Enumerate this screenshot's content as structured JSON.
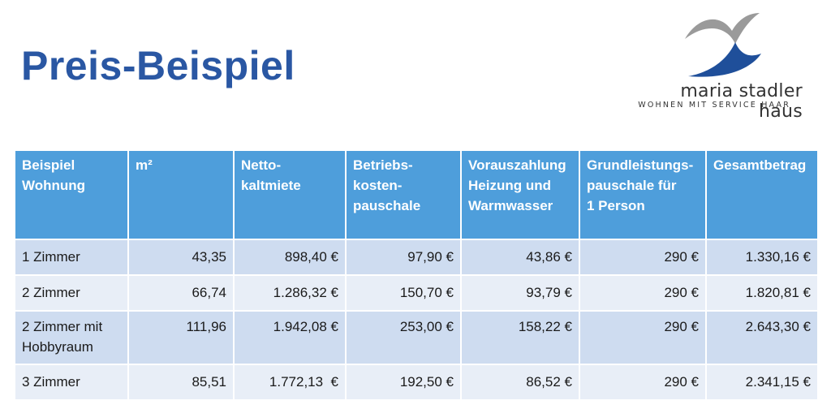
{
  "title": "Preis-Beispiel",
  "logo": {
    "name": "maria stadler haus",
    "tagline": "WOHNEN MIT SERVICE HAAR",
    "colors": {
      "blue": "#1f4f9a",
      "gray": "#9a9a9a"
    }
  },
  "table": {
    "headers": [
      "Beispiel\nWohnung",
      "m²",
      "Netto-\nkaltmiete",
      "Betriebs-\nkosten-\npauschale",
      "Vorauszahlung\nHeizung und\nWarmwasser",
      "Grundleistungs-\npauschale für\n1 Person",
      "Gesamtbetrag"
    ],
    "rows": [
      [
        "1 Zimmer",
        "43,35",
        "898,40 €",
        "97,90 €",
        "43,86 €",
        "290 €",
        "1.330,16 €"
      ],
      [
        "2 Zimmer",
        "66,74",
        "1.286,32 €",
        "150,70 €",
        "93,79 €",
        "290 €",
        "1.820,81 €"
      ],
      [
        "2 Zimmer mit\nHobbyraum",
        "111,96",
        "1.942,08 €",
        "253,00 €",
        "158,22 €",
        "290 €",
        "2.643,30 €"
      ],
      [
        "3 Zimmer",
        "85,51",
        "1.772,13  €",
        "192,50 €",
        "86,52 €",
        "290 €",
        "2.341,15 €"
      ]
    ],
    "colors": {
      "header": "#4e9edb",
      "row_dark": "#cedcf0",
      "row_light": "#e8eef7"
    }
  }
}
